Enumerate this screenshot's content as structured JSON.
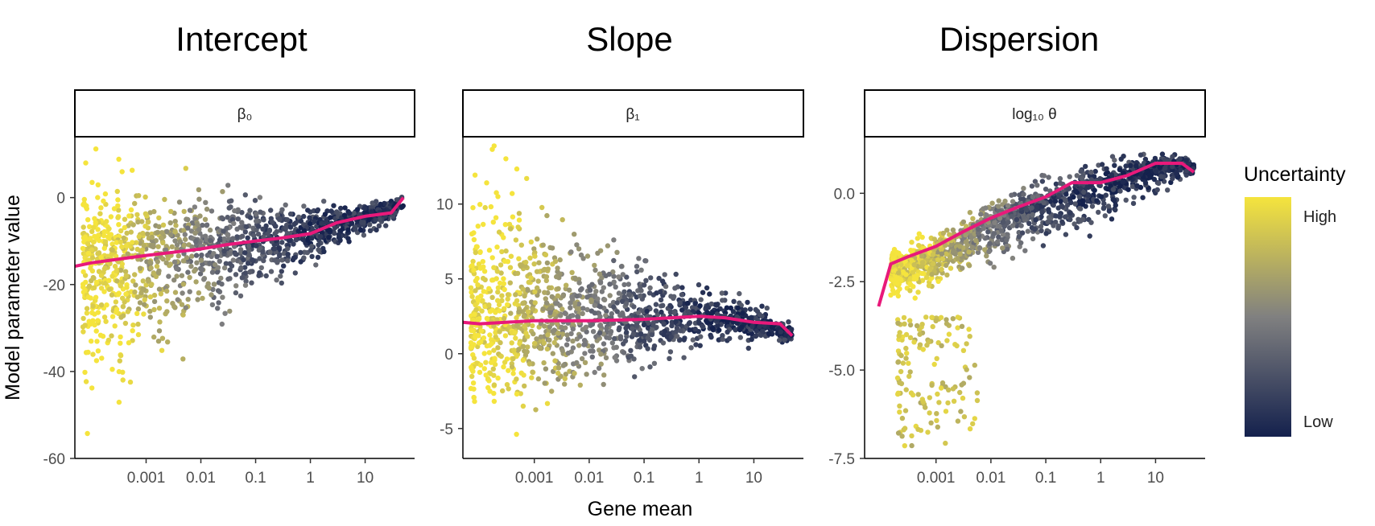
{
  "chart_data": [
    {
      "type": "scatter",
      "title": "Intercept",
      "facet_label": "β₀",
      "xscale": "log10",
      "xlim": [
        5e-05,
        80
      ],
      "ylim": [
        -60,
        14
      ],
      "x_ticks": [
        0.001,
        0.01,
        0.1,
        1,
        10
      ],
      "x_tick_labels": [
        "0.001",
        "0.01",
        "0.1",
        "1",
        "10"
      ],
      "y_ticks": [
        -60,
        -40,
        -20,
        0
      ],
      "y_tick_labels": [
        "-60",
        "-40",
        "-20",
        "0"
      ],
      "point_cloud": [
        {
          "x": 7e-05,
          "center": -16,
          "spread_low": 25,
          "spread_high": 16,
          "uncertainty": 0.95
        },
        {
          "x": 0.0003,
          "center": -15,
          "spread_low": 30,
          "spread_high": 20,
          "uncertainty": 0.9
        },
        {
          "x": 0.001,
          "center": -14,
          "spread_low": 20,
          "spread_high": 15,
          "uncertainty": 0.7
        },
        {
          "x": 0.01,
          "center": -12,
          "spread_low": 16,
          "spread_high": 12,
          "uncertainty": 0.45
        },
        {
          "x": 0.1,
          "center": -10,
          "spread_low": 12,
          "spread_high": 10,
          "uncertainty": 0.2
        },
        {
          "x": 1,
          "center": -8,
          "spread_low": 7,
          "spread_high": 6,
          "uncertainty": 0.08
        },
        {
          "x": 10,
          "center": -4.5,
          "spread_low": 4,
          "spread_high": 3,
          "uncertainty": 0.03
        },
        {
          "x": 50,
          "center": -2,
          "spread_low": 1.5,
          "spread_high": 2,
          "uncertainty": 0.02
        }
      ],
      "trend": {
        "x": [
          5e-05,
          0.0001,
          0.0003,
          0.001,
          0.003,
          0.01,
          0.03,
          0.1,
          0.3,
          1,
          3,
          10,
          30,
          50
        ],
        "y": [
          -15.8,
          -15.0,
          -14.2,
          -13.3,
          -12.6,
          -11.8,
          -10.8,
          -10.0,
          -9.3,
          -8.3,
          -5.8,
          -4.3,
          -3.5,
          0
        ]
      }
    },
    {
      "type": "scatter",
      "title": "Slope",
      "facet_label": "β₁",
      "xscale": "log10",
      "xlim": [
        5e-05,
        80
      ],
      "ylim": [
        -7,
        14.5
      ],
      "x_ticks": [
        0.001,
        0.01,
        0.1,
        1,
        10
      ],
      "x_tick_labels": [
        "0.001",
        "0.01",
        "0.1",
        "1",
        "10"
      ],
      "y_ticks": [
        -5,
        0,
        5,
        10
      ],
      "y_tick_labels": [
        "-5",
        "0",
        "5",
        "10"
      ],
      "point_cloud": [
        {
          "x": 7e-05,
          "center": 2.1,
          "spread_low": 5,
          "spread_high": 7,
          "uncertainty": 0.95
        },
        {
          "x": 0.0003,
          "center": 2.1,
          "spread_low": 6.5,
          "spread_high": 10,
          "uncertainty": 0.9
        },
        {
          "x": 0.001,
          "center": 2.2,
          "spread_low": 5,
          "spread_high": 7,
          "uncertainty": 0.7
        },
        {
          "x": 0.01,
          "center": 2.2,
          "spread_low": 4,
          "spread_high": 5,
          "uncertainty": 0.45
        },
        {
          "x": 0.1,
          "center": 2.3,
          "spread_low": 3,
          "spread_high": 3.5,
          "uncertainty": 0.2
        },
        {
          "x": 1,
          "center": 2.5,
          "spread_low": 2,
          "spread_high": 2,
          "uncertainty": 0.08
        },
        {
          "x": 10,
          "center": 2.1,
          "spread_low": 1.2,
          "spread_high": 1.2,
          "uncertainty": 0.03
        },
        {
          "x": 50,
          "center": 1.2,
          "spread_low": 0.5,
          "spread_high": 0.8,
          "uncertainty": 0.02
        }
      ],
      "trend": {
        "x": [
          5e-05,
          0.0001,
          0.0003,
          0.001,
          0.01,
          0.1,
          1,
          3,
          10,
          30,
          50
        ],
        "y": [
          2.1,
          2.0,
          2.1,
          2.2,
          2.2,
          2.3,
          2.5,
          2.4,
          2.1,
          2.0,
          1.2
        ]
      }
    },
    {
      "type": "scatter",
      "title": "Dispersion",
      "facet_label": "log₁₀ θ",
      "xscale": "log10",
      "xlim": [
        5e-05,
        80
      ],
      "ylim": [
        -7.5,
        1.6
      ],
      "x_ticks": [
        0.001,
        0.01,
        0.1,
        1,
        10
      ],
      "x_tick_labels": [
        "0.001",
        "0.01",
        "0.1",
        "1",
        "10"
      ],
      "y_ticks": [
        -7.5,
        -5.0,
        -2.5,
        0.0
      ],
      "y_tick_labels": [
        "-7.5",
        "-5.0",
        "-2.5",
        "0.0"
      ],
      "point_cloud": [
        {
          "x": 0.00015,
          "center": -2.2,
          "spread_low": 0.6,
          "spread_high": 0.5,
          "uncertainty": 0.95
        },
        {
          "x": 0.0005,
          "center": -1.9,
          "spread_low": 0.9,
          "spread_high": 0.6,
          "uncertainty": 0.85
        },
        {
          "x": 0.002,
          "center": -1.5,
          "spread_low": 0.8,
          "spread_high": 0.6,
          "uncertainty": 0.65
        },
        {
          "x": 0.01,
          "center": -0.9,
          "spread_low": 0.9,
          "spread_high": 0.6,
          "uncertainty": 0.4
        },
        {
          "x": 0.1,
          "center": -0.3,
          "spread_low": 1.0,
          "spread_high": 0.6,
          "uncertainty": 0.15
        },
        {
          "x": 1,
          "center": 0.2,
          "spread_low": 1.0,
          "spread_high": 0.6,
          "uncertainty": 0.06
        },
        {
          "x": 10,
          "center": 0.7,
          "spread_low": 0.6,
          "spread_high": 0.4,
          "uncertainty": 0.03
        },
        {
          "x": 50,
          "center": 0.75,
          "spread_low": 0.2,
          "spread_high": 0.2,
          "uncertainty": 0.02
        }
      ],
      "outlier_cloud": {
        "x_min": 0.0002,
        "x_max": 0.006,
        "y_min": -7.2,
        "y_max": -3.5,
        "uncertainty": 0.95
      },
      "trend": {
        "x": [
          9e-05,
          0.00015,
          0.0003,
          0.001,
          0.003,
          0.01,
          0.03,
          0.1,
          0.3,
          1,
          3,
          10,
          30,
          50
        ],
        "y": [
          -3.2,
          -2.0,
          -1.8,
          -1.5,
          -1.1,
          -0.7,
          -0.4,
          -0.1,
          0.3,
          0.3,
          0.5,
          0.85,
          0.85,
          0.6
        ]
      }
    }
  ],
  "shared": {
    "xlabel": "Gene mean",
    "ylabel": "Model parameter value",
    "trend_color": "#e8197a",
    "colors": {
      "low": "#14214d",
      "mid": "#808080",
      "high": "#f5e43d"
    }
  },
  "legend": {
    "title": "Uncertainty",
    "high_label": "High",
    "low_label": "Low",
    "placement": "right"
  }
}
